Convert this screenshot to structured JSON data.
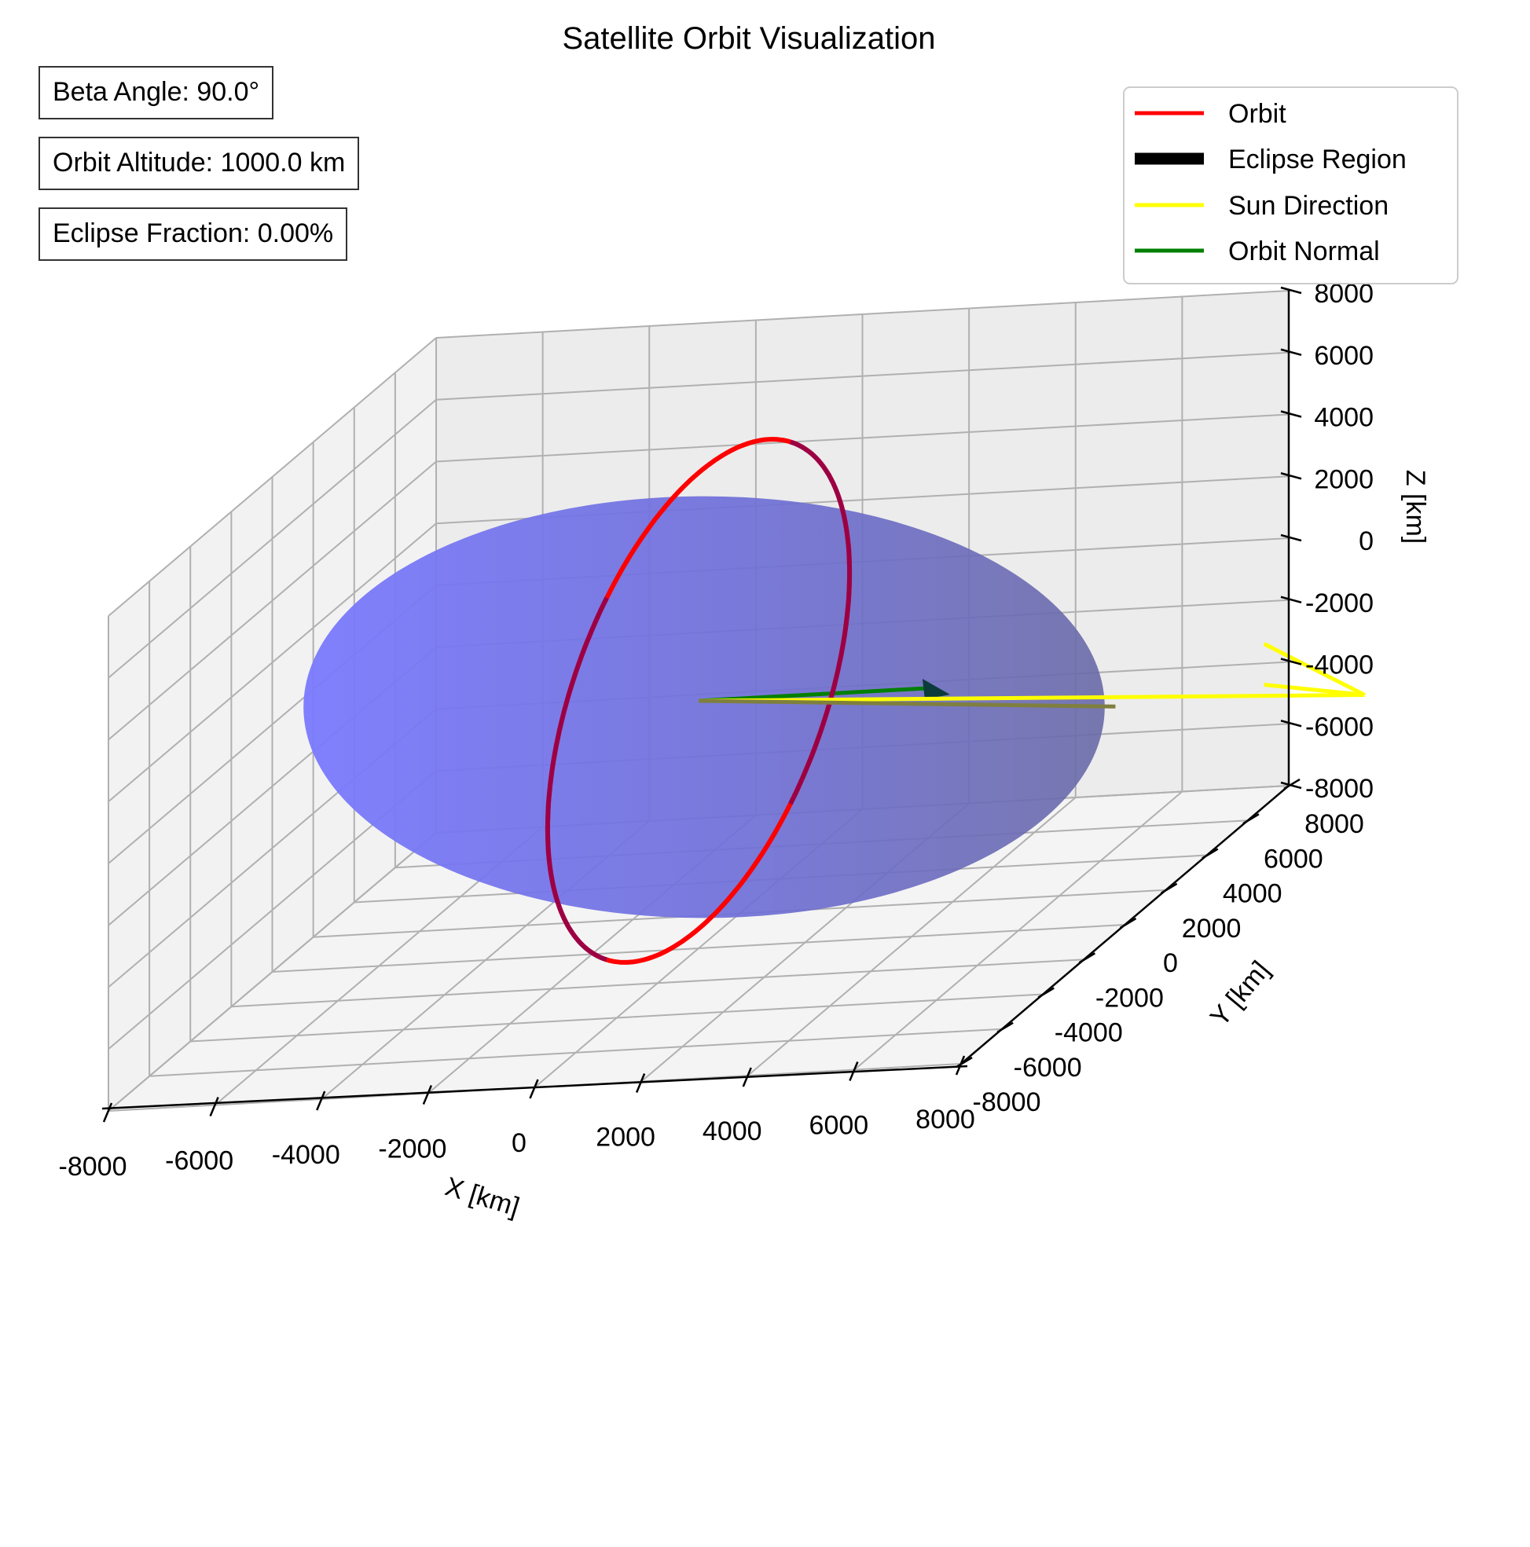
{
  "title": "Satellite Orbit Visualization",
  "info_boxes": [
    {
      "label": "Beta Angle: 90.0°"
    },
    {
      "label": "Orbit Altitude: 1000.0 km"
    },
    {
      "label": "Eclipse Fraction: 0.00%"
    }
  ],
  "legend": {
    "placement": "top-right",
    "entries": [
      {
        "label": "Orbit",
        "color": "#ff0000",
        "style": "line"
      },
      {
        "label": "Eclipse Region",
        "color": "#000000",
        "style": "thick-line"
      },
      {
        "label": "Sun Direction",
        "color": "#ffff00",
        "style": "line"
      },
      {
        "label": "Orbit Normal",
        "color": "#008000",
        "style": "line"
      }
    ]
  },
  "chart_data": {
    "type": "3d-line",
    "title": "Satellite Orbit Visualization",
    "xlabel": "X [km]",
    "ylabel": "Y [km]",
    "zlabel": "Z [km]",
    "xlim": [
      -8000,
      8000
    ],
    "ylim": [
      -8000,
      8000
    ],
    "zlim": [
      -8000,
      8000
    ],
    "x_ticks": [
      "-8000",
      "-6000",
      "-4000",
      "-2000",
      "0",
      "2000",
      "4000",
      "6000",
      "8000"
    ],
    "y_ticks": [
      "-8000",
      "-6000",
      "-4000",
      "-2000",
      "0",
      "2000",
      "4000",
      "6000",
      "8000"
    ],
    "z_ticks": [
      "-8000",
      "-6000",
      "-4000",
      "-2000",
      "0",
      "2000",
      "4000",
      "6000",
      "8000"
    ],
    "grid": true,
    "earth_radius": 6371,
    "earth_color": "#6b6bff",
    "orbit_radius": 7371,
    "orbit_color": "#ff0000",
    "sun_direction": [
      1,
      0,
      0
    ],
    "sun_color": "#ffff00",
    "orbit_normal": [
      1,
      0,
      0
    ],
    "normal_color": "#008000",
    "series": [
      {
        "name": "Orbit",
        "color": "#ff0000"
      },
      {
        "name": "Sun Direction",
        "color": "#ffff00"
      },
      {
        "name": "Orbit Normal",
        "color": "#008000"
      }
    ]
  }
}
